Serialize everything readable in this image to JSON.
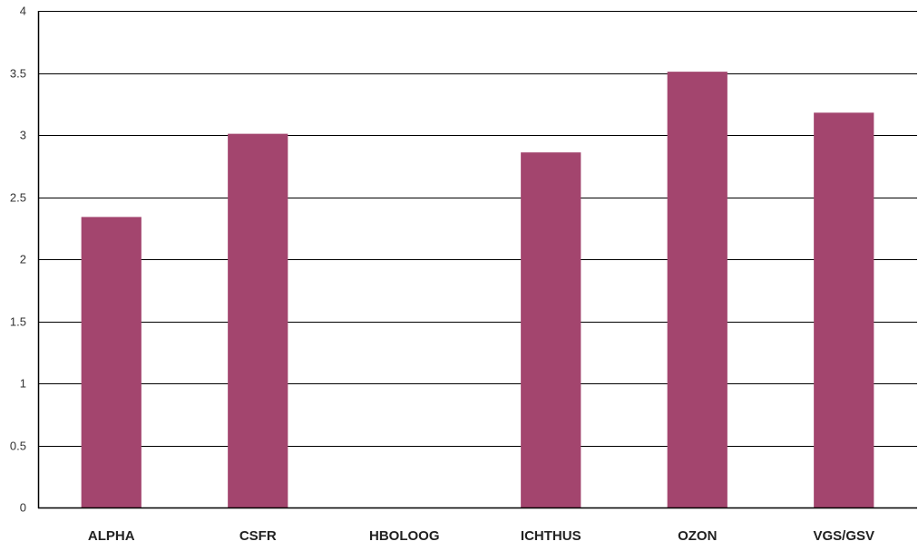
{
  "chart_data": {
    "type": "bar",
    "categories": [
      "ALPHA",
      "CSFR",
      "HBOLOOG",
      "ICHTHUS",
      "OZON",
      "VGS/GSV"
    ],
    "values": [
      2.34,
      3.01,
      0,
      2.86,
      3.51,
      3.18
    ],
    "title": "",
    "xlabel": "",
    "ylabel": "",
    "ylim": [
      0,
      4
    ],
    "yticks": [
      0,
      0.5,
      1,
      1.5,
      2,
      2.5,
      3,
      3.5,
      4
    ],
    "ytick_labels": [
      "0",
      "0.5",
      "1",
      "1.5",
      "2",
      "2.5",
      "3",
      "3.5",
      "4"
    ],
    "grid": true,
    "legend": "none",
    "bar_color": "#a3456e",
    "grid_color": "#000000"
  }
}
